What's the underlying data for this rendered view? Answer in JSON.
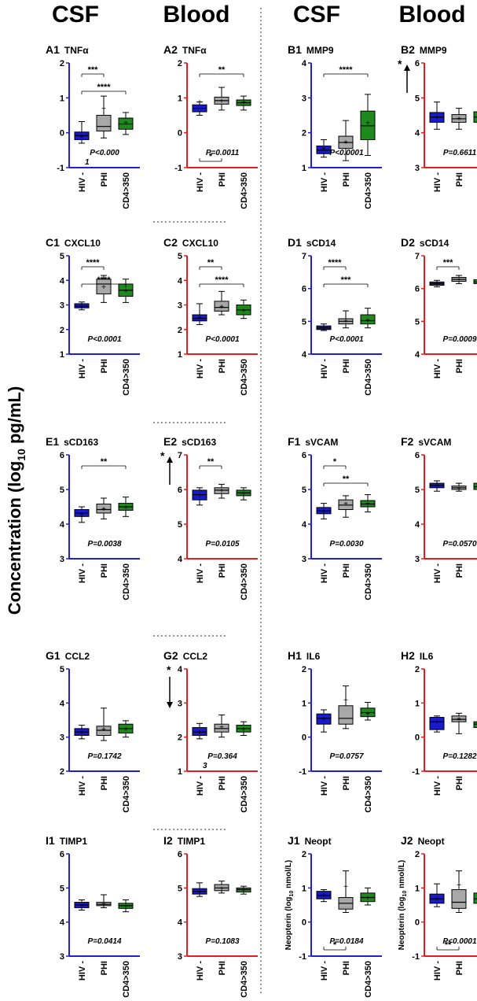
{
  "headers": [
    "CSF",
    "Blood",
    "CSF",
    "Blood"
  ],
  "y_axis_label": "Concentration (log",
  "y_axis_sub": "10",
  "y_axis_unit": " pg/mL)",
  "categories": [
    "HIV -",
    "PHI",
    "CD4>350"
  ],
  "colors": {
    "hiv_neg": "#1a1acd",
    "phi": "#a8a8a8",
    "cd4": "#1e8a1e",
    "csf_axis": "#2020d0",
    "blood_axis": "#e02020"
  },
  "chart_data": [
    {
      "id": "A1",
      "type": "box",
      "title_code": "A1",
      "title_name": "TNFα",
      "fluid": "CSF",
      "ylim": [
        -1,
        2
      ],
      "ticks": [
        "-1",
        "0",
        "1",
        "2"
      ],
      "pvalue": "P<0.000",
      "pvalue_sub": "1",
      "boxes": [
        {
          "min": -0.3,
          "q1": -0.2,
          "median": -0.08,
          "q3": 0.02,
          "max": 0.32,
          "mean": -0.1
        },
        {
          "min": -0.15,
          "q1": 0.05,
          "median": 0.18,
          "q3": 0.5,
          "max": 1.05,
          "mean": 0.7
        },
        {
          "min": -0.05,
          "q1": 0.1,
          "median": 0.25,
          "q3": 0.42,
          "max": 0.58,
          "mean": 0.3
        }
      ],
      "sig": [
        {
          "from": 0,
          "to": 1,
          "label": "***"
        },
        {
          "from": 0,
          "to": 2,
          "label": "****"
        }
      ]
    },
    {
      "id": "A2",
      "type": "box",
      "title_code": "A2",
      "title_name": "TNFα",
      "fluid": "Blood",
      "ylim": [
        -1,
        2
      ],
      "ticks": [
        "-1",
        "0",
        "1",
        "2"
      ],
      "pvalue": "P=0.0011",
      "boxes": [
        {
          "min": 0.5,
          "q1": 0.6,
          "median": 0.7,
          "q3": 0.8,
          "max": 0.88,
          "mean": 0.9
        },
        {
          "min": 0.65,
          "q1": 0.82,
          "median": 0.92,
          "q3": 1.02,
          "max": 1.3,
          "mean": 0.93
        },
        {
          "min": 0.65,
          "q1": 0.78,
          "median": 0.86,
          "q3": 0.94,
          "max": 1.05,
          "mean": 0.88
        }
      ],
      "sig": [
        {
          "from": 0,
          "to": 2,
          "label": "**"
        },
        {
          "from": 0,
          "to": 1,
          "label": "*",
          "below": true
        }
      ]
    },
    {
      "id": "B1",
      "type": "box",
      "title_code": "B1",
      "title_name": "MMP9",
      "fluid": "CSF",
      "ylim": [
        1,
        4
      ],
      "ticks": [
        "1",
        "2",
        "3",
        "4"
      ],
      "pvalue": "P<0.0001",
      "boxes": [
        {
          "min": 1.3,
          "q1": 1.4,
          "median": 1.5,
          "q3": 1.62,
          "max": 1.8,
          "mean": 1.55
        },
        {
          "min": 1.2,
          "q1": 1.55,
          "median": 1.72,
          "q3": 1.9,
          "max": 2.35,
          "mean": 1.75
        },
        {
          "min": 1.35,
          "q1": 1.8,
          "median": 2.2,
          "q3": 2.62,
          "max": 3.1,
          "mean": 2.3
        }
      ],
      "sig": [
        {
          "from": 0,
          "to": 2,
          "label": "****"
        }
      ]
    },
    {
      "id": "B2",
      "type": "box",
      "title_code": "B2",
      "title_name": "MMP9",
      "fluid": "Blood",
      "ylim": [
        3,
        6
      ],
      "ticks": [
        "3",
        "4",
        "5",
        "6"
      ],
      "pvalue": "P=0.6611",
      "arrow": "up",
      "arrow_label": "*",
      "boxes": [
        {
          "min": 4.1,
          "q1": 4.3,
          "median": 4.45,
          "q3": 4.58,
          "max": 4.88,
          "mean": 4.45
        },
        {
          "min": 4.1,
          "q1": 4.3,
          "median": 4.4,
          "q3": 4.52,
          "max": 4.7,
          "mean": 4.42
        },
        {
          "min": 3.9,
          "q1": 4.3,
          "median": 4.45,
          "q3": 4.6,
          "max": 4.75,
          "mean": 4.45
        }
      ],
      "sig": []
    },
    {
      "id": "C1",
      "type": "box",
      "title_code": "C1",
      "title_name": "CXCL10",
      "fluid": "CSF",
      "ylim": [
        1,
        5
      ],
      "ticks": [
        "1",
        "2",
        "3",
        "4",
        "5"
      ],
      "pvalue": "P<0.0001",
      "boxes": [
        {
          "min": 2.8,
          "q1": 2.88,
          "median": 2.95,
          "q3": 3.05,
          "max": 3.12,
          "mean": 2.95
        },
        {
          "min": 3.1,
          "q1": 3.45,
          "median": 3.85,
          "q3": 4.05,
          "max": 4.2,
          "mean": 3.75
        },
        {
          "min": 3.1,
          "q1": 3.35,
          "median": 3.6,
          "q3": 3.85,
          "max": 4.05,
          "mean": 3.6
        }
      ],
      "sig": [
        {
          "from": 0,
          "to": 1,
          "label": "****"
        },
        {
          "from": 0,
          "to": 2,
          "label": "****"
        }
      ]
    },
    {
      "id": "C2",
      "type": "box",
      "title_code": "C2",
      "title_name": "CXCL10",
      "fluid": "Blood",
      "ylim": [
        1,
        5
      ],
      "ticks": [
        "1",
        "2",
        "3",
        "4",
        "5"
      ],
      "pvalue": "P<0.0001",
      "boxes": [
        {
          "min": 2.2,
          "q1": 2.35,
          "median": 2.45,
          "q3": 2.6,
          "max": 3.05,
          "mean": 2.5
        },
        {
          "min": 2.6,
          "q1": 2.75,
          "median": 2.9,
          "q3": 3.15,
          "max": 3.55,
          "mean": 2.95
        },
        {
          "min": 2.45,
          "q1": 2.6,
          "median": 2.8,
          "q3": 3.0,
          "max": 3.2,
          "mean": 2.8
        }
      ],
      "sig": [
        {
          "from": 0,
          "to": 1,
          "label": "**"
        },
        {
          "from": 0,
          "to": 2,
          "label": "****"
        }
      ]
    },
    {
      "id": "D1",
      "type": "box",
      "title_code": "D1",
      "title_name": "sCD14",
      "fluid": "CSF",
      "ylim": [
        4,
        7
      ],
      "ticks": [
        "4",
        "5",
        "6",
        "7"
      ],
      "pvalue": "P<0.0001",
      "boxes": [
        {
          "min": 4.72,
          "q1": 4.75,
          "median": 4.8,
          "q3": 4.86,
          "max": 4.92,
          "mean": 4.8
        },
        {
          "min": 4.8,
          "q1": 4.92,
          "median": 5.0,
          "q3": 5.08,
          "max": 5.32,
          "mean": 5.02
        },
        {
          "min": 4.8,
          "q1": 4.92,
          "median": 5.02,
          "q3": 5.2,
          "max": 5.4,
          "mean": 5.05
        }
      ],
      "sig": [
        {
          "from": 0,
          "to": 1,
          "label": "****"
        },
        {
          "from": 0,
          "to": 2,
          "label": "***"
        }
      ]
    },
    {
      "id": "D2",
      "type": "box",
      "title_code": "D2",
      "title_name": "sCD14",
      "fluid": "Blood",
      "ylim": [
        4,
        7
      ],
      "ticks": [
        "4",
        "5",
        "6",
        "7"
      ],
      "pvalue": "P=0.0009",
      "boxes": [
        {
          "min": 6.05,
          "q1": 6.1,
          "median": 6.15,
          "q3": 6.2,
          "max": 6.25,
          "mean": 6.15
        },
        {
          "min": 6.15,
          "q1": 6.22,
          "median": 6.28,
          "q3": 6.34,
          "max": 6.4,
          "mean": 6.28
        },
        {
          "min": 6.1,
          "q1": 6.15,
          "median": 6.2,
          "q3": 6.27,
          "max": 6.32,
          "mean": 6.2
        }
      ],
      "sig": [
        {
          "from": 0,
          "to": 1,
          "label": "***"
        }
      ]
    },
    {
      "id": "E1",
      "type": "box",
      "title_code": "E1",
      "title_name": "sCD163",
      "fluid": "CSF",
      "ylim": [
        3,
        6
      ],
      "ticks": [
        "3",
        "4",
        "5",
        "6"
      ],
      "pvalue": "P=0.0038",
      "boxes": [
        {
          "min": 4.05,
          "q1": 4.22,
          "median": 4.32,
          "q3": 4.42,
          "max": 4.5,
          "mean": 4.3
        },
        {
          "min": 4.15,
          "q1": 4.32,
          "median": 4.42,
          "q3": 4.58,
          "max": 4.75,
          "mean": 4.45
        },
        {
          "min": 4.22,
          "q1": 4.4,
          "median": 4.5,
          "q3": 4.6,
          "max": 4.78,
          "mean": 4.5
        }
      ],
      "sig": [
        {
          "from": 0,
          "to": 2,
          "label": "**"
        }
      ]
    },
    {
      "id": "E2",
      "type": "box",
      "title_code": "E2",
      "title_name": "sCD163",
      "fluid": "Blood",
      "ylim": [
        4,
        7
      ],
      "ticks": [
        "4",
        "5",
        "6",
        "7"
      ],
      "pvalue": "P=0.0105",
      "arrow": "up",
      "arrow_label": "*",
      "boxes": [
        {
          "min": 5.55,
          "q1": 5.7,
          "median": 5.85,
          "q3": 5.98,
          "max": 6.05,
          "mean": 5.85
        },
        {
          "min": 5.75,
          "q1": 5.88,
          "median": 5.98,
          "q3": 6.05,
          "max": 6.15,
          "mean": 5.98
        },
        {
          "min": 5.7,
          "q1": 5.82,
          "median": 5.9,
          "q3": 5.98,
          "max": 6.05,
          "mean": 5.9
        }
      ],
      "sig": [
        {
          "from": 0,
          "to": 1,
          "label": "**"
        }
      ]
    },
    {
      "id": "F1",
      "type": "box",
      "title_code": "F1",
      "title_name": "sVCAM",
      "fluid": "CSF",
      "ylim": [
        3,
        6
      ],
      "ticks": [
        "3",
        "4",
        "5",
        "6"
      ],
      "pvalue": "P=0.0030",
      "boxes": [
        {
          "min": 4.15,
          "q1": 4.3,
          "median": 4.38,
          "q3": 4.48,
          "max": 4.6,
          "mean": 4.38
        },
        {
          "min": 4.2,
          "q1": 4.42,
          "median": 4.55,
          "q3": 4.7,
          "max": 4.82,
          "mean": 4.6
        },
        {
          "min": 4.35,
          "q1": 4.5,
          "median": 4.58,
          "q3": 4.68,
          "max": 4.85,
          "mean": 4.6
        }
      ],
      "sig": [
        {
          "from": 0,
          "to": 1,
          "label": "*"
        },
        {
          "from": 0,
          "to": 2,
          "label": "**"
        }
      ]
    },
    {
      "id": "F2",
      "type": "box",
      "title_code": "F2",
      "title_name": "sVCAM",
      "fluid": "Blood",
      "ylim": [
        3,
        6
      ],
      "ticks": [
        "3",
        "4",
        "5",
        "6"
      ],
      "pvalue": "P=0.0570",
      "boxes": [
        {
          "min": 4.95,
          "q1": 5.05,
          "median": 5.12,
          "q3": 5.18,
          "max": 5.25,
          "mean": 5.12
        },
        {
          "min": 4.95,
          "q1": 5.0,
          "median": 5.05,
          "q3": 5.1,
          "max": 5.18,
          "mean": 5.05
        },
        {
          "min": 4.9,
          "q1": 5.0,
          "median": 5.08,
          "q3": 5.18,
          "max": 5.3,
          "mean": 5.1
        }
      ],
      "sig": []
    },
    {
      "id": "G1",
      "type": "box",
      "title_code": "G1",
      "title_name": "CCL2",
      "fluid": "CSF",
      "ylim": [
        2,
        5
      ],
      "ticks": [
        "2",
        "3",
        "4",
        "5"
      ],
      "pvalue": "P=0.1742",
      "boxes": [
        {
          "min": 2.95,
          "q1": 3.05,
          "median": 3.15,
          "q3": 3.25,
          "max": 3.35,
          "mean": 3.15
        },
        {
          "min": 2.9,
          "q1": 3.05,
          "median": 3.2,
          "q3": 3.32,
          "max": 3.85,
          "mean": 3.25
        },
        {
          "min": 3.0,
          "q1": 3.12,
          "median": 3.25,
          "q3": 3.38,
          "max": 3.48,
          "mean": 3.25
        }
      ],
      "sig": []
    },
    {
      "id": "G2",
      "type": "box",
      "title_code": "G2",
      "title_name": "CCL2",
      "fluid": "Blood",
      "ylim": [
        1,
        4
      ],
      "ticks": [
        "1",
        "2",
        "3",
        "4"
      ],
      "pvalue": "P=0.364",
      "pvalue_sub": "3",
      "arrow": "down",
      "arrow_label": "*",
      "boxes": [
        {
          "min": 1.95,
          "q1": 2.05,
          "median": 2.15,
          "q3": 2.28,
          "max": 2.4,
          "mean": 2.15
        },
        {
          "min": 2.0,
          "q1": 2.15,
          "median": 2.25,
          "q3": 2.38,
          "max": 2.65,
          "mean": 2.3
        },
        {
          "min": 2.05,
          "q1": 2.15,
          "median": 2.25,
          "q3": 2.35,
          "max": 2.45,
          "mean": 2.25
        }
      ],
      "sig": []
    },
    {
      "id": "H1",
      "type": "box",
      "title_code": "H1",
      "title_name": "IL6",
      "fluid": "CSF",
      "ylim": [
        -1,
        2
      ],
      "ticks": [
        "-1",
        "0",
        "1",
        "2"
      ],
      "pvalue": "P=0.0757",
      "boxes": [
        {
          "min": 0.15,
          "q1": 0.38,
          "median": 0.55,
          "q3": 0.68,
          "max": 0.8,
          "mean": 0.55
        },
        {
          "min": 0.25,
          "q1": 0.38,
          "median": 0.55,
          "q3": 0.92,
          "max": 1.5,
          "mean": 1.1
        },
        {
          "min": 0.5,
          "q1": 0.6,
          "median": 0.72,
          "q3": 0.85,
          "max": 1.02,
          "mean": 0.7
        }
      ],
      "sig": []
    },
    {
      "id": "H2",
      "type": "box",
      "title_code": "H2",
      "title_name": "IL6",
      "fluid": "Blood",
      "ylim": [
        -1,
        2
      ],
      "ticks": [
        "-1",
        "0",
        "1",
        "2"
      ],
      "pvalue": "P=0.1282",
      "boxes": [
        {
          "min": 0.15,
          "q1": 0.22,
          "median": 0.45,
          "q3": 0.58,
          "max": 0.62,
          "mean": 0.45
        },
        {
          "min": 0.1,
          "q1": 0.45,
          "median": 0.52,
          "q3": 0.62,
          "max": 0.7,
          "mean": 0.55
        },
        {
          "min": 0.2,
          "q1": 0.28,
          "median": 0.38,
          "q3": 0.45,
          "max": 0.8,
          "mean": 0.4
        }
      ],
      "sig": []
    },
    {
      "id": "I1",
      "type": "box",
      "title_code": "I1",
      "title_name": "TIMP1",
      "fluid": "CSF",
      "ylim": [
        3,
        6
      ],
      "ticks": [
        "3",
        "4",
        "5",
        "6"
      ],
      "pvalue": "P=0.0414",
      "boxes": [
        {
          "min": 4.35,
          "q1": 4.42,
          "median": 4.5,
          "q3": 4.58,
          "max": 4.65,
          "mean": 4.5
        },
        {
          "min": 4.42,
          "q1": 4.48,
          "median": 4.52,
          "q3": 4.58,
          "max": 4.8,
          "mean": 4.55
        },
        {
          "min": 4.3,
          "q1": 4.4,
          "median": 4.48,
          "q3": 4.55,
          "max": 4.65,
          "mean": 4.48
        }
      ],
      "sig": []
    },
    {
      "id": "I2",
      "type": "box",
      "title_code": "I2",
      "title_name": "TIMP1",
      "fluid": "Blood",
      "ylim": [
        3,
        6
      ],
      "ticks": [
        "3",
        "4",
        "5",
        "6"
      ],
      "pvalue": "P=0.1083",
      "boxes": [
        {
          "min": 4.75,
          "q1": 4.82,
          "median": 4.9,
          "q3": 4.98,
          "max": 5.15,
          "mean": 4.9
        },
        {
          "min": 4.85,
          "q1": 4.92,
          "median": 5.0,
          "q3": 5.1,
          "max": 5.2,
          "mean": 5.0
        },
        {
          "min": 4.82,
          "q1": 4.88,
          "median": 4.95,
          "q3": 5.0,
          "max": 5.05,
          "mean": 4.95
        }
      ],
      "sig": []
    },
    {
      "id": "J1",
      "type": "box",
      "title_code": "J1",
      "title_name": "Neopt",
      "fluid": "CSF",
      "ylim": [
        -1,
        2
      ],
      "ticks": [
        "-1",
        "0",
        "1",
        "2"
      ],
      "pvalue": "P=0.0184",
      "side_label": "Neopterin (log",
      "side_sub": "10",
      "side_unit": " nmol/L)",
      "boxes": [
        {
          "min": 0.6,
          "q1": 0.68,
          "median": 0.78,
          "q3": 0.9,
          "max": 0.95,
          "mean": 0.8
        },
        {
          "min": 0.28,
          "q1": 0.38,
          "median": 0.55,
          "q3": 0.72,
          "max": 1.5,
          "mean": 1.05
        },
        {
          "min": 0.5,
          "q1": 0.6,
          "median": 0.72,
          "q3": 0.85,
          "max": 1.0,
          "mean": 0.72
        }
      ],
      "sig": [
        {
          "from": 0,
          "to": 1,
          "label": "*",
          "below": true
        }
      ]
    },
    {
      "id": "J2",
      "type": "box",
      "title_code": "J2",
      "title_name": "Neopt",
      "fluid": "Blood",
      "ylim": [
        -1,
        2
      ],
      "ticks": [
        "-1",
        "0",
        "1",
        "2"
      ],
      "pvalue": "P<0.0001",
      "side_label": "Neopterin (log",
      "side_sub": "10",
      "side_unit": " nmol/L)",
      "boxes": [
        {
          "min": 0.45,
          "q1": 0.55,
          "median": 0.68,
          "q3": 0.82,
          "max": 1.12,
          "mean": 0.7
        },
        {
          "min": 0.28,
          "q1": 0.4,
          "median": 0.58,
          "q3": 0.95,
          "max": 1.5,
          "mean": 1.1
        },
        {
          "min": 0.45,
          "q1": 0.55,
          "median": 0.68,
          "q3": 0.85,
          "max": 1.02,
          "mean": 0.7
        }
      ],
      "sig": [
        {
          "from": 0,
          "to": 1,
          "label": "**",
          "below": true
        }
      ]
    }
  ]
}
